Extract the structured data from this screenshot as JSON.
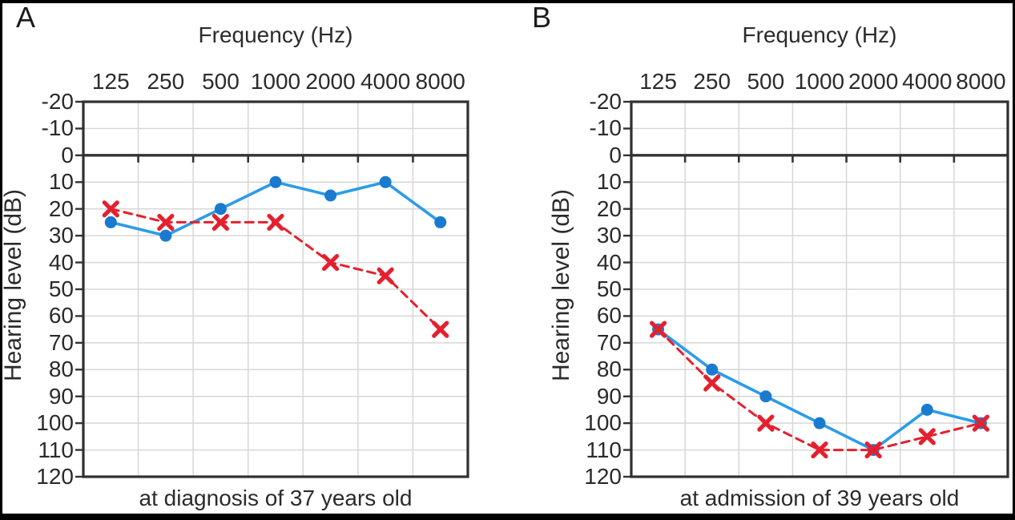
{
  "colors": {
    "blue_line": "#2B9CE8",
    "blue_marker": "#1A7AD0",
    "red": "#E5202E",
    "grid": "#D7D7D7",
    "axis": "#333333",
    "text": "#2B2B2B"
  },
  "chart_data": [
    {
      "type": "line",
      "panel_label": "A",
      "title": "Frequency (Hz)",
      "xlabel": "Frequency (Hz)",
      "ylabel": "Hearing level (dB)",
      "caption": "at diagnosis of 37 years old",
      "categories": [
        "125",
        "250",
        "500",
        "1000",
        "2000",
        "4000",
        "8000"
      ],
      "y_ticks": [
        -20,
        -10,
        0,
        10,
        20,
        30,
        40,
        50,
        60,
        70,
        80,
        90,
        100,
        110,
        120
      ],
      "ylim": [
        -20,
        120
      ],
      "y_axis_inverted_db_scale": true,
      "grid": true,
      "legend": "none",
      "series": [
        {
          "name": "blue solid line with circle markers",
          "marker": "circle",
          "line_style": "solid",
          "color": "#2B9CE8",
          "marker_color": "#1A7AD0",
          "values": [
            25,
            30,
            20,
            10,
            15,
            10,
            25
          ]
        },
        {
          "name": "red dashed line with x markers",
          "marker": "x",
          "line_style": "dashed",
          "color": "#E5202E",
          "marker_color": "#E5202E",
          "values": [
            20,
            25,
            25,
            25,
            40,
            45,
            65
          ]
        }
      ]
    },
    {
      "type": "line",
      "panel_label": "B",
      "title": "Frequency (Hz)",
      "xlabel": "Frequency (Hz)",
      "ylabel": "Hearing level (dB)",
      "caption": "at admission of 39 years old",
      "categories": [
        "125",
        "250",
        "500",
        "1000",
        "2000",
        "4000",
        "8000"
      ],
      "y_ticks": [
        -20,
        -10,
        0,
        10,
        20,
        30,
        40,
        50,
        60,
        70,
        80,
        90,
        100,
        110,
        120
      ],
      "ylim": [
        -20,
        120
      ],
      "y_axis_inverted_db_scale": true,
      "grid": true,
      "legend": "none",
      "series": [
        {
          "name": "blue solid line with circle markers",
          "marker": "circle",
          "line_style": "solid",
          "color": "#2B9CE8",
          "marker_color": "#1A7AD0",
          "values": [
            65,
            80,
            90,
            100,
            110,
            95,
            100
          ]
        },
        {
          "name": "red dashed line with x markers",
          "marker": "x",
          "line_style": "dashed",
          "color": "#E5202E",
          "marker_color": "#E5202E",
          "values": [
            65,
            85,
            100,
            110,
            110,
            105,
            100
          ]
        }
      ]
    }
  ]
}
